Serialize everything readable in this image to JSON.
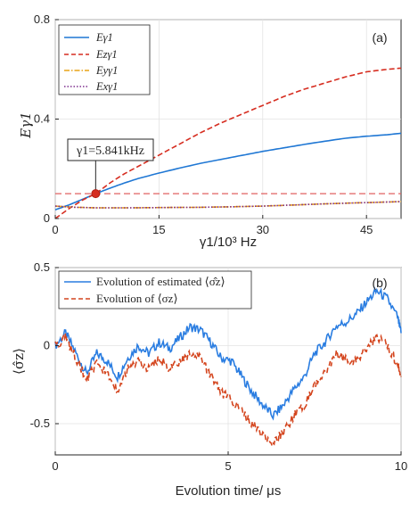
{
  "chart_data": [
    {
      "panel": "(a)",
      "type": "line",
      "xlabel": "γ1/10³ Hz",
      "ylabel": "Eγ1",
      "xlim": [
        0,
        50
      ],
      "ylim": [
        0,
        0.8
      ],
      "xticks": [
        "0",
        "15",
        "30",
        "45"
      ],
      "yticks": [
        "0",
        "0.4",
        "0.8"
      ],
      "grid": true,
      "legend_position": "top-left",
      "series": [
        {
          "name": "Eγ1",
          "color": "#1f77d4",
          "style": "solid",
          "x": [
            0,
            2,
            4,
            5.841,
            8,
            10,
            12,
            15,
            18,
            21,
            24,
            27,
            30,
            33,
            36,
            39,
            42,
            45,
            48,
            50
          ],
          "values": [
            0.035,
            0.055,
            0.078,
            0.1,
            0.123,
            0.143,
            0.161,
            0.183,
            0.203,
            0.222,
            0.238,
            0.254,
            0.27,
            0.284,
            0.298,
            0.311,
            0.323,
            0.331,
            0.337,
            0.343
          ]
        },
        {
          "name": "Ezγ1",
          "color": "#d62d20",
          "style": "dashed",
          "x": [
            0,
            2,
            4,
            5.841,
            8,
            10,
            12,
            15,
            18,
            21,
            24,
            27,
            30,
            33,
            36,
            39,
            42,
            45,
            48,
            50
          ],
          "values": [
            0.0,
            0.04,
            0.075,
            0.1,
            0.145,
            0.18,
            0.21,
            0.255,
            0.3,
            0.345,
            0.385,
            0.42,
            0.455,
            0.49,
            0.52,
            0.545,
            0.57,
            0.59,
            0.6,
            0.605
          ]
        },
        {
          "name": "Eyγ1",
          "color": "#e8a317",
          "style": "dashdot",
          "x": [
            0,
            3,
            6,
            10,
            15,
            20,
            25,
            30,
            35,
            40,
            45,
            50
          ],
          "values": [
            0.05,
            0.045,
            0.043,
            0.043,
            0.044,
            0.045,
            0.047,
            0.05,
            0.055,
            0.06,
            0.064,
            0.068
          ]
        },
        {
          "name": "Exγ1",
          "color": "#7e2f8e",
          "style": "dotted",
          "x": [
            0,
            3,
            6,
            10,
            15,
            20,
            25,
            30,
            35,
            40,
            45,
            50
          ],
          "values": [
            0.05,
            0.045,
            0.043,
            0.043,
            0.044,
            0.045,
            0.047,
            0.05,
            0.055,
            0.06,
            0.064,
            0.068
          ]
        }
      ],
      "threshold_line": {
        "y": 0.1,
        "color": "#e06060",
        "style": "dashed"
      },
      "marker": {
        "x": 5.841,
        "y": 0.1,
        "color": "#d62d20"
      },
      "annotation": "γ1=5.841kHz"
    },
    {
      "panel": "(b)",
      "type": "line",
      "xlabel": "Evolution time/ μs",
      "ylabel": "⟨σ̂z⟩",
      "xlim": [
        0,
        10
      ],
      "ylim": [
        -0.7,
        0.5
      ],
      "xticks": [
        "0",
        "5",
        "10"
      ],
      "yticks": [
        "0.5",
        "0",
        "-0.5"
      ],
      "grid": true,
      "legend_position": "top-left",
      "series": [
        {
          "name": "Evolution of estimated ⟨σ̂z⟩",
          "color": "#2a7de1",
          "style": "solid",
          "x": [
            0,
            0.3,
            0.6,
            0.9,
            1.2,
            1.5,
            1.8,
            2.1,
            2.4,
            2.7,
            3.0,
            3.3,
            3.6,
            3.9,
            4.2,
            4.5,
            4.8,
            5.1,
            5.4,
            5.7,
            6.0,
            6.3,
            6.6,
            6.9,
            7.2,
            7.5,
            7.8,
            8.1,
            8.4,
            8.7,
            9.0,
            9.3,
            9.6,
            9.9,
            10.0
          ],
          "values": [
            0.0,
            0.08,
            -0.05,
            -0.18,
            -0.05,
            -0.1,
            -0.2,
            -0.08,
            0.0,
            -0.05,
            0.02,
            -0.02,
            0.05,
            0.12,
            0.1,
            0.02,
            -0.08,
            -0.1,
            -0.2,
            -0.3,
            -0.38,
            -0.45,
            -0.38,
            -0.28,
            -0.2,
            -0.05,
            0.02,
            0.12,
            0.15,
            0.2,
            0.28,
            0.35,
            0.3,
            0.18,
            0.08
          ]
        },
        {
          "name": "Evolution of ⟨σz⟩",
          "color": "#d4451e",
          "style": "dashed",
          "x": [
            0,
            0.3,
            0.6,
            0.9,
            1.2,
            1.5,
            1.8,
            2.1,
            2.4,
            2.7,
            3.0,
            3.3,
            3.6,
            3.9,
            4.2,
            4.5,
            4.8,
            5.1,
            5.4,
            5.7,
            6.0,
            6.3,
            6.6,
            6.9,
            7.2,
            7.5,
            7.8,
            8.1,
            8.4,
            8.7,
            9.0,
            9.3,
            9.6,
            9.9,
            10.0
          ],
          "values": [
            0.0,
            0.05,
            -0.08,
            -0.22,
            -0.12,
            -0.18,
            -0.28,
            -0.15,
            -0.1,
            -0.15,
            -0.08,
            -0.15,
            -0.1,
            -0.05,
            -0.08,
            -0.2,
            -0.3,
            -0.35,
            -0.42,
            -0.5,
            -0.57,
            -0.62,
            -0.55,
            -0.45,
            -0.38,
            -0.25,
            -0.18,
            -0.05,
            -0.08,
            -0.1,
            -0.02,
            0.05,
            0.0,
            -0.12,
            -0.2
          ]
        }
      ]
    }
  ]
}
